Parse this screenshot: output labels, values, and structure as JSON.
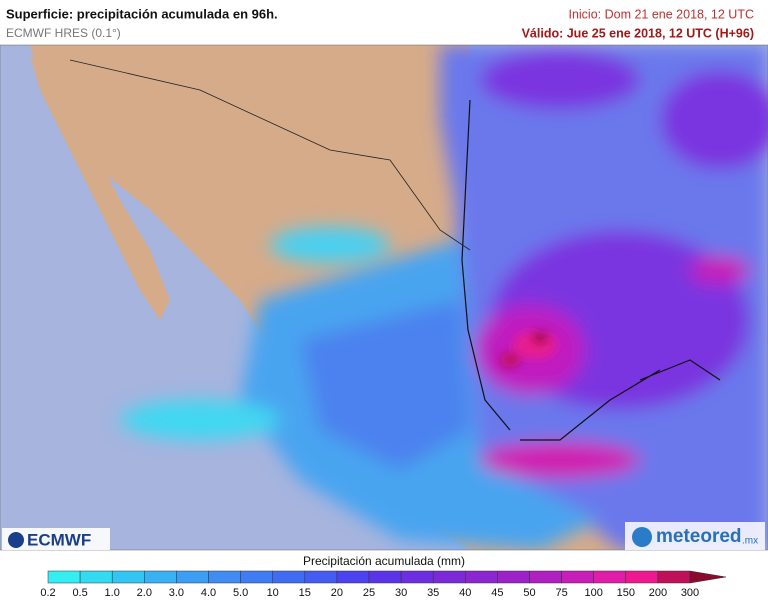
{
  "header": {
    "title": "Superficie: precipitación acumulada en 96h.",
    "model": "ECMWF HRES (0.1°)",
    "start": "Inicio: Dom 21 ene 2018, 12 UTC",
    "valid": "Válido: Jue 25 ene 2018, 12 UTC (H+96)"
  },
  "logos": {
    "left": "ECMWF",
    "right": "meteored",
    "right_suffix": ".mx"
  },
  "colorbar": {
    "title": "Precipitación acumulada (mm)",
    "labels": [
      "0.2",
      "0.5",
      "1.0",
      "2.0",
      "3.0",
      "4.0",
      "5.0",
      "10",
      "15",
      "20",
      "25",
      "30",
      "35",
      "40",
      "45",
      "50",
      "75",
      "100",
      "150",
      "200",
      "300"
    ],
    "colors": [
      "#33eef2",
      "#33dbf2",
      "#33c6f2",
      "#38b2f2",
      "#3c9ef2",
      "#408cf2",
      "#407cf2",
      "#406cf2",
      "#445cf2",
      "#4c42f0",
      "#5c34e8",
      "#6c2ee0",
      "#7c2ad8",
      "#8c26d0",
      "#9c22c8",
      "#b020c0",
      "#c81eb8",
      "#e01ca8",
      "#f01890",
      "#c0105a"
    ],
    "arrow_color": "#8a0a30"
  }
}
